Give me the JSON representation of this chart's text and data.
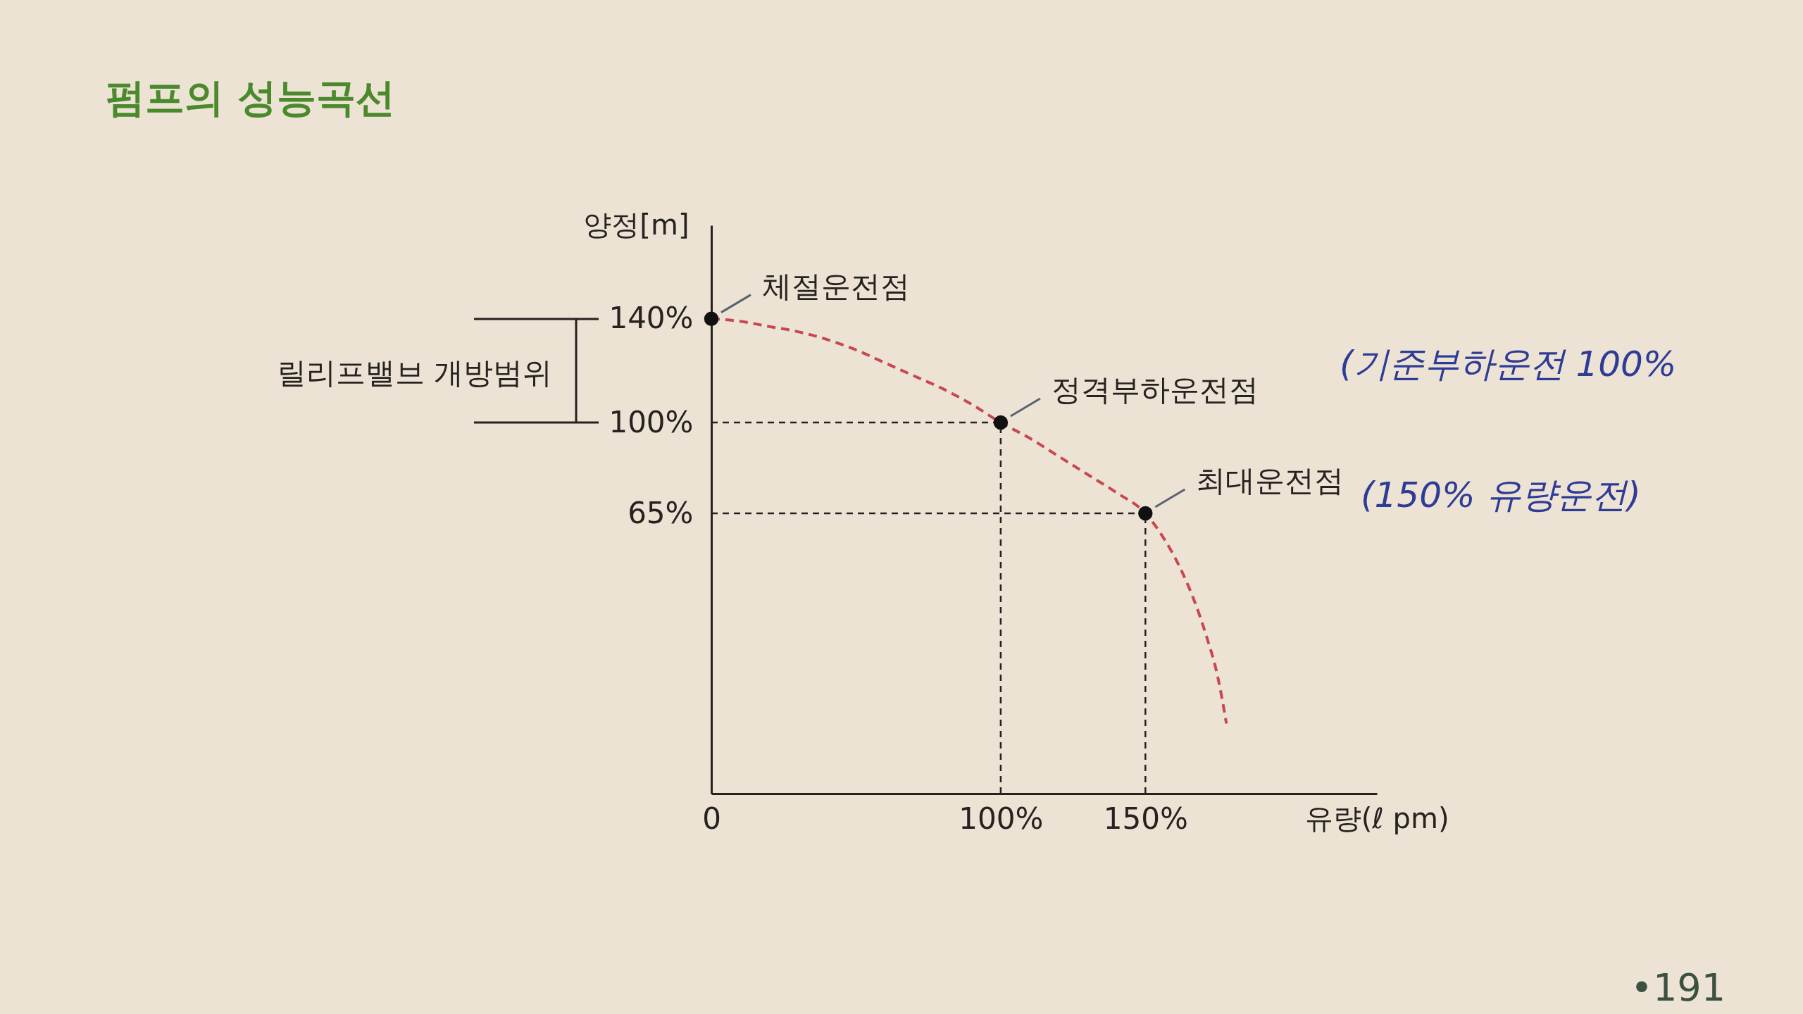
{
  "chart_data": {
    "type": "line",
    "title": "펌프의 성능곡선",
    "xlabel": "유량(ℓ pm)",
    "ylabel": "양정[m]",
    "xlim": [
      0,
      230
    ],
    "ylim": [
      -43,
      176
    ],
    "xticks": [
      0,
      {
        "value": 100,
        "label": "100%"
      },
      {
        "value": 150,
        "label": "150%"
      }
    ],
    "yticks": [
      {
        "value": 65,
        "label": "65%"
      },
      {
        "value": 100,
        "label": "100%"
      },
      {
        "value": 140,
        "label": "140%"
      }
    ],
    "series": [
      {
        "color": "#c9474f",
        "line_style": "dashed",
        "marker": "none",
        "x": [
          0,
          10,
          20,
          30,
          40,
          50,
          60,
          70,
          80,
          90,
          100,
          110,
          120,
          130,
          140,
          150,
          156,
          162,
          167,
          171,
          175,
          178
        ],
        "values": [
          140,
          139,
          137,
          135,
          132,
          128,
          123,
          118,
          113,
          107,
          100,
          94,
          87,
          80,
          73,
          65,
          56,
          44,
          31,
          18,
          2,
          -16
        ]
      },
      {
        "type": "scatter",
        "color": "#111111",
        "marker": "circle",
        "x": [
          0,
          100,
          150
        ],
        "values": [
          140,
          100,
          65
        ]
      }
    ],
    "ref_lines": [
      {
        "axis": "y",
        "value": 100,
        "color": "#222222",
        "line_style": "dashed"
      },
      {
        "axis": "y",
        "value": 65,
        "color": "#222222",
        "line_style": "dashed"
      },
      {
        "axis": "x",
        "value": 100,
        "color": "#222222",
        "line_style": "dashed"
      },
      {
        "axis": "x",
        "value": 150,
        "color": "#222222",
        "line_style": "dashed"
      }
    ],
    "annotations": [
      {
        "text": "체절운전점",
        "x": 0,
        "y": 140
      },
      {
        "text": "정격부하운전점",
        "x": 100,
        "y": 100
      },
      {
        "text": "최대운전점",
        "x": 150,
        "y": 65
      },
      "릴리프밸브 개방범위",
      "(기준부하운전 100%",
      "(150% 유량운전)",
      "•191"
    ]
  }
}
